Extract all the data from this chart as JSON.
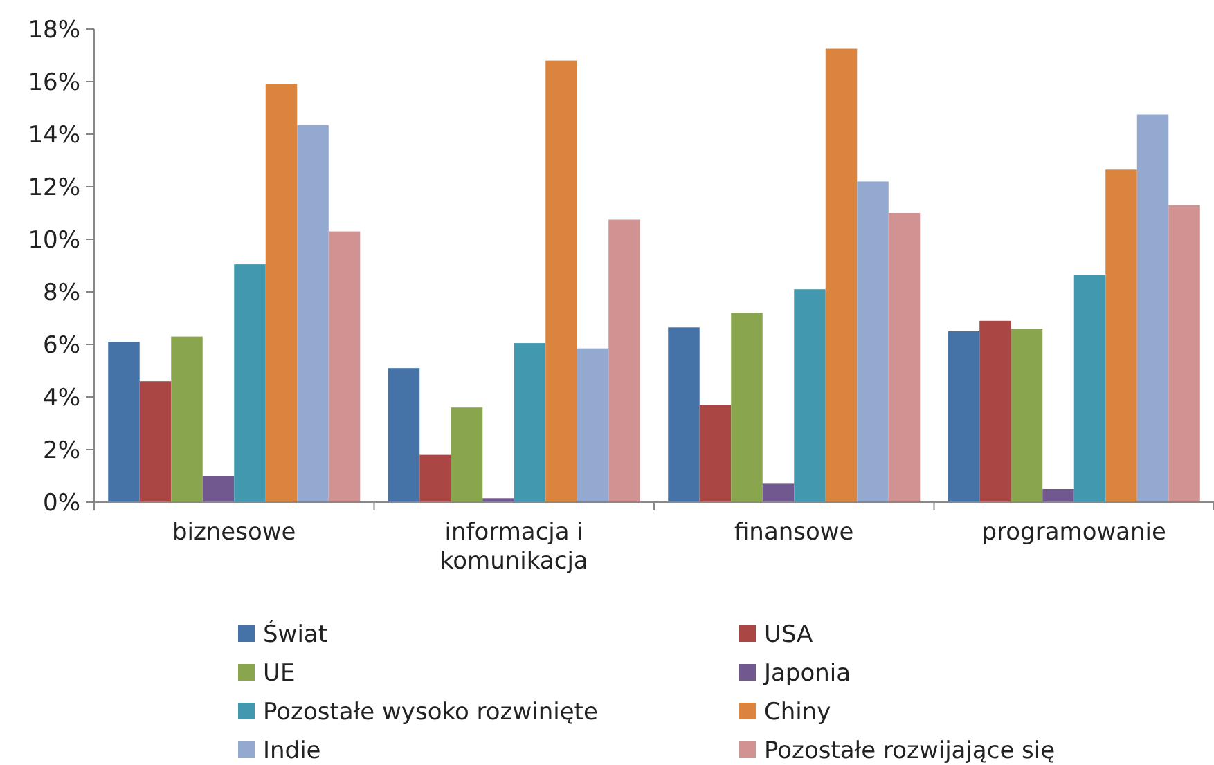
{
  "chart_data": {
    "type": "bar",
    "categories": [
      "biznesowe",
      "informacja i komunikacja",
      "finansowe",
      "programowanie"
    ],
    "series": [
      {
        "name": "Świat",
        "color": "#4572a7",
        "values": [
          6.1,
          5.1,
          6.65,
          6.5
        ]
      },
      {
        "name": "USA",
        "color": "#aa4643",
        "values": [
          4.6,
          1.8,
          3.7,
          6.9
        ]
      },
      {
        "name": "UE",
        "color": "#89a54e",
        "values": [
          6.3,
          3.6,
          7.2,
          6.6
        ]
      },
      {
        "name": "Japonia",
        "color": "#71588f",
        "values": [
          1.0,
          0.15,
          0.7,
          0.5
        ]
      },
      {
        "name": "Pozostałe wysoko rozwinięte",
        "color": "#4198af",
        "values": [
          9.05,
          6.05,
          8.1,
          8.65
        ]
      },
      {
        "name": "Chiny",
        "color": "#db843d",
        "values": [
          15.9,
          16.8,
          17.25,
          12.65
        ]
      },
      {
        "name": "Indie",
        "color": "#93a9cf",
        "values": [
          14.35,
          5.85,
          12.2,
          14.75
        ]
      },
      {
        "name": "Pozostałe rozwijające się",
        "color": "#d09391",
        "values": [
          10.3,
          10.75,
          11.0,
          11.3
        ]
      }
    ],
    "ylim": [
      0,
      18
    ],
    "yticks": [
      {
        "value": 0,
        "label": "0%"
      },
      {
        "value": 2,
        "label": "2%"
      },
      {
        "value": 4,
        "label": "4%"
      },
      {
        "value": 6,
        "label": "6%"
      },
      {
        "value": 8,
        "label": "8%"
      },
      {
        "value": 10,
        "label": "10%"
      },
      {
        "value": 12,
        "label": "12%"
      },
      {
        "value": 14,
        "label": "14%"
      },
      {
        "value": 16,
        "label": "16%"
      },
      {
        "value": 18,
        "label": "18%"
      }
    ],
    "grid": false,
    "legend": "bottom"
  }
}
